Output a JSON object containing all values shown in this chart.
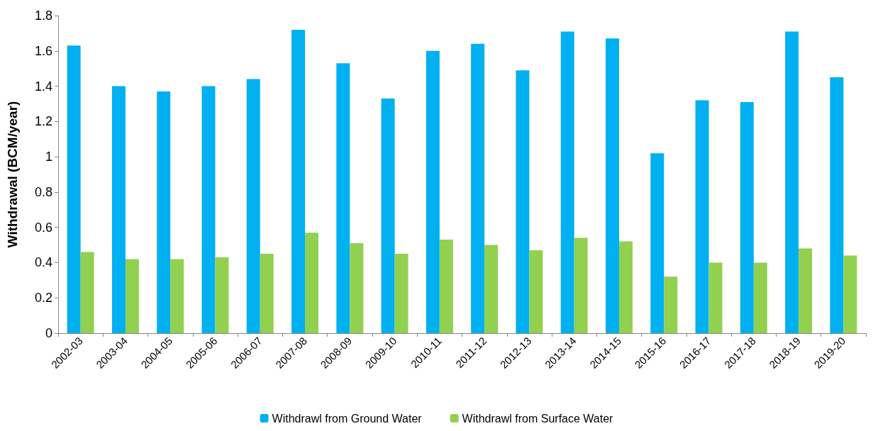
{
  "chart_data": {
    "type": "bar",
    "ylabel": "Withdrawal (BCM/year)",
    "categories": [
      "2002-03",
      "2003-04",
      "2004-05",
      "2005-06",
      "2006-07",
      "2007-08",
      "2008-09",
      "2009-10",
      "2010-11",
      "2011-12",
      "2012-13",
      "2013-14",
      "2014-15",
      "2015-16",
      "2016-17",
      "2017-18",
      "2018-19",
      "2019-20"
    ],
    "series": [
      {
        "name": "Withdrawl from Ground Water",
        "color": "#00b0f0",
        "values": [
          1.63,
          1.4,
          1.37,
          1.4,
          1.44,
          1.72,
          1.53,
          1.33,
          1.6,
          1.64,
          1.49,
          1.71,
          1.67,
          1.02,
          1.32,
          1.31,
          1.71,
          1.45
        ]
      },
      {
        "name": "Withdrawl from Surface Water",
        "color": "#92d050",
        "values": [
          0.46,
          0.42,
          0.42,
          0.43,
          0.45,
          0.57,
          0.51,
          0.45,
          0.53,
          0.5,
          0.47,
          0.54,
          0.52,
          0.32,
          0.4,
          0.4,
          0.48,
          0.44
        ]
      }
    ],
    "ylim": [
      0,
      1.8
    ],
    "yticks": [
      0,
      0.2,
      0.4,
      0.6,
      0.8,
      1,
      1.2,
      1.4,
      1.6,
      1.8
    ],
    "grid": false,
    "legend": "bottom"
  }
}
